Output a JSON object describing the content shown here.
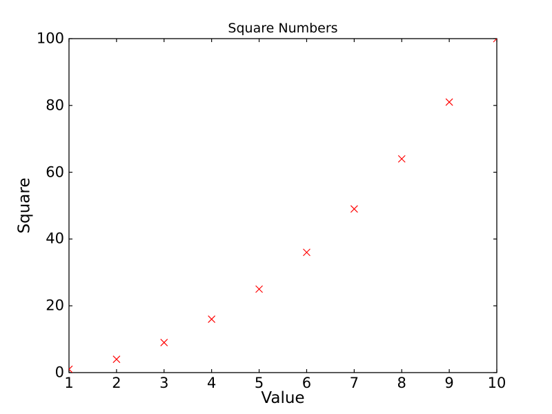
{
  "figure": {
    "background": "#ffffff",
    "text_color": "#000000",
    "axis_color": "#000000"
  },
  "chart_data": {
    "type": "scatter",
    "title": "Square Numbers",
    "xlabel": "Value",
    "ylabel": "Square",
    "x": [
      1,
      2,
      3,
      4,
      5,
      6,
      7,
      8,
      9,
      10
    ],
    "y": [
      1,
      4,
      9,
      16,
      25,
      36,
      49,
      64,
      81,
      100
    ],
    "xlim": [
      1,
      10
    ],
    "ylim": [
      0,
      100
    ],
    "x_ticks": [
      1,
      2,
      3,
      4,
      5,
      6,
      7,
      8,
      9,
      10
    ],
    "y_ticks": [
      0,
      20,
      40,
      60,
      80,
      100
    ],
    "marker": "x",
    "marker_color": "#ff0000",
    "marker_size_px": 10,
    "grid": false,
    "legend_position": "none",
    "tick_direction": "in"
  }
}
